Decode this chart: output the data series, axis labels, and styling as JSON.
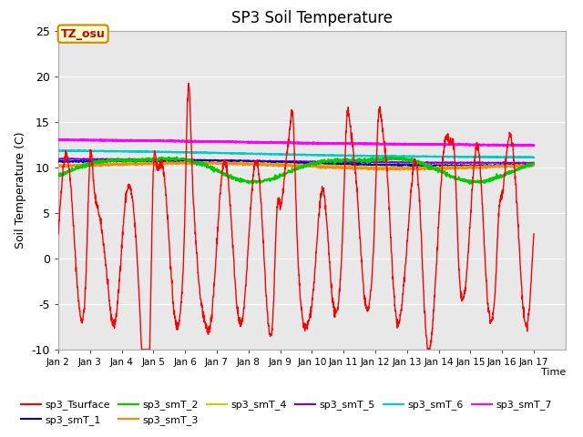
{
  "title": "SP3 Soil Temperature",
  "ylabel": "Soil Temperature (C)",
  "xlabel": "Time",
  "xlim_days": [
    1,
    17
  ],
  "ylim": [
    -10,
    25
  ],
  "yticks": [
    -10,
    -5,
    0,
    5,
    10,
    15,
    20,
    25
  ],
  "xtick_labels": [
    "Jan 2",
    "Jan 3",
    "Jan 4",
    "Jan 5",
    "Jan 6",
    "Jan 7",
    "Jan 8",
    "Jan 9",
    "Jan 10",
    "Jan 11",
    "Jan 12",
    "Jan 13",
    "Jan 14",
    "Jan 15",
    "Jan 16",
    "Jan 17"
  ],
  "annotation_text": "TZ_osu",
  "annotation_box_color": "#ffffcc",
  "annotation_box_edge": "#cc8800",
  "annotation_text_color": "#cc0000",
  "background_color": "#e8e8e8",
  "series": {
    "sp3_Tsurface": {
      "color": "#ff0000",
      "lw": 1.0,
      "zorder": 5
    },
    "sp3_smT_1": {
      "color": "#0000cc",
      "lw": 1.2,
      "zorder": 4
    },
    "sp3_smT_2": {
      "color": "#00cc00",
      "lw": 1.2,
      "zorder": 4
    },
    "sp3_smT_3": {
      "color": "#ff8800",
      "lw": 1.2,
      "zorder": 4
    },
    "sp3_smT_4": {
      "color": "#cccc00",
      "lw": 1.2,
      "zorder": 4
    },
    "sp3_smT_5": {
      "color": "#8800cc",
      "lw": 1.2,
      "zorder": 4
    },
    "sp3_smT_6": {
      "color": "#00cccc",
      "lw": 1.5,
      "zorder": 3
    },
    "sp3_smT_7": {
      "color": "#ff00ff",
      "lw": 1.8,
      "zorder": 3
    }
  },
  "figsize": [
    6.4,
    4.8
  ],
  "dpi": 100
}
